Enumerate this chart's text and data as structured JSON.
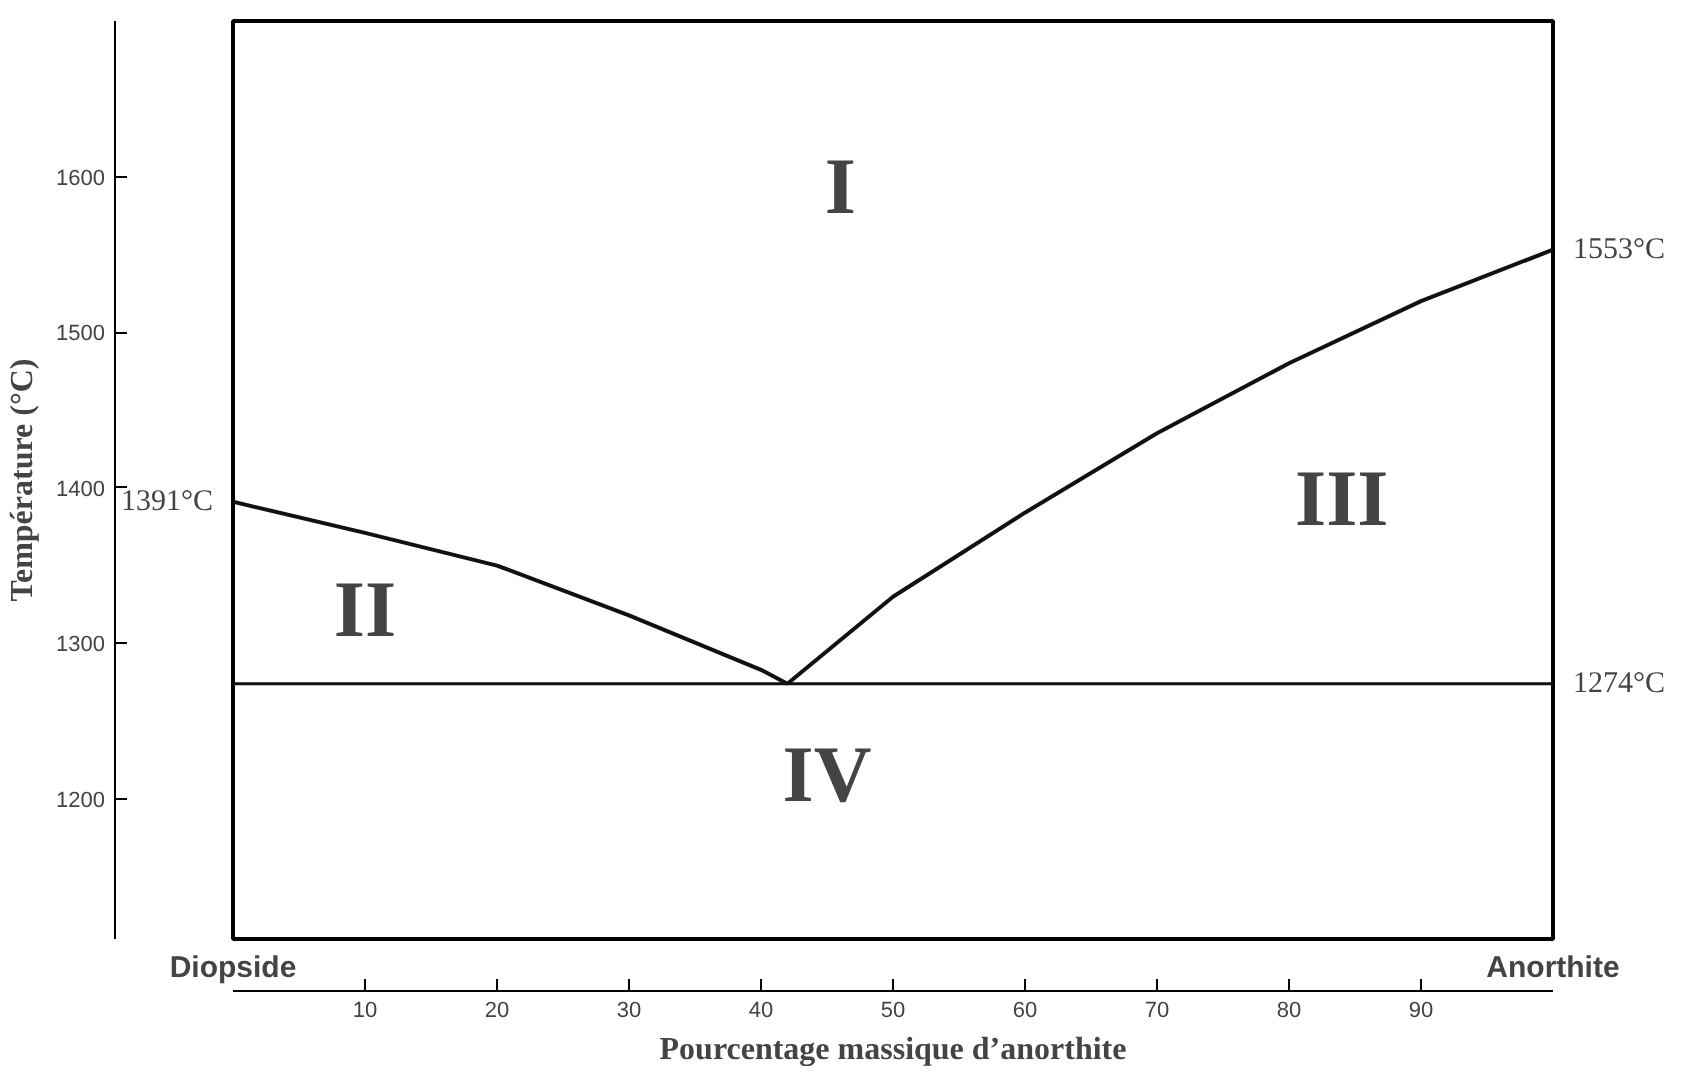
{
  "chart_data": {
    "type": "line",
    "xlabel": "Pourcentage massique d’anorthite",
    "ylabel": "Température (°C)",
    "xlim": [
      0,
      100
    ],
    "ylim": [
      1110,
      1700
    ],
    "xticks": [
      10,
      20,
      30,
      40,
      50,
      60,
      70,
      80,
      90
    ],
    "yticks": [
      1200,
      1300,
      1400,
      1500,
      1600
    ],
    "series": [
      {
        "color": "#111111",
        "x": [
          0,
          10,
          20,
          30,
          40,
          42
        ],
        "values": [
          1391,
          1371,
          1350,
          1318,
          1283,
          1274
        ]
      },
      {
        "color": "#111111",
        "x": [
          42,
          50,
          60,
          70,
          80,
          90,
          100
        ],
        "values": [
          1274,
          1330,
          1384,
          1435,
          1480,
          1520,
          1553
        ]
      }
    ],
    "ref_lines": [
      {
        "axis": "y",
        "value": 1274,
        "label": "1274°C",
        "color": "#111111"
      }
    ],
    "annotations": [
      "Diopside",
      "Anorthite",
      {
        "text": "1391°C",
        "x": 0,
        "y": 1391
      },
      {
        "text": "1553°C",
        "x": 100,
        "y": 1553
      },
      "I",
      "II",
      "III",
      "IV"
    ],
    "grid": false,
    "marker": "none",
    "line_style": "solid"
  }
}
